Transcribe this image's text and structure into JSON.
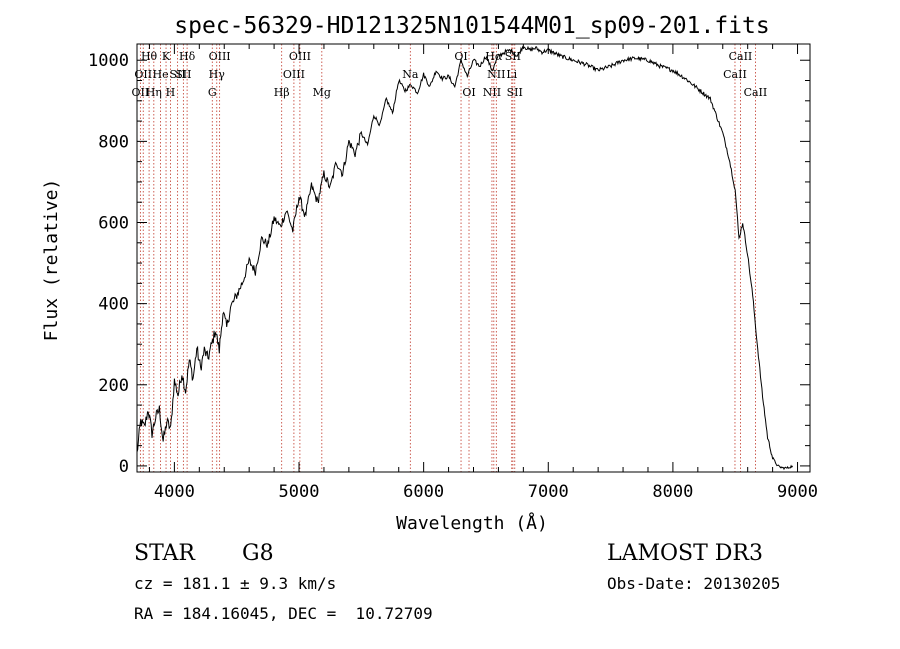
{
  "chart_data": {
    "type": "line",
    "title": "spec-56329-HD121325N101544M01_sp09-201.fits",
    "xlabel": "Wavelength (Å)",
    "ylabel": "Flux (relative)",
    "xlim": [
      3700,
      9100
    ],
    "ylim": [
      -15,
      1040
    ],
    "x_ticks": [
      4000,
      5000,
      6000,
      7000,
      8000,
      9000
    ],
    "x_tick_labels": [
      "4000",
      "5000",
      "6000",
      "7000",
      "8000",
      "9000"
    ],
    "y_ticks": [
      0,
      200,
      400,
      600,
      800,
      1000
    ],
    "y_tick_labels": [
      "0",
      "200",
      "400",
      "600",
      "800",
      "1000"
    ],
    "series": [
      {
        "name": "spectrum",
        "x": [
          3700,
          3730,
          3760,
          3790,
          3820,
          3850,
          3880,
          3910,
          3940,
          3970,
          4000,
          4030,
          4060,
          4090,
          4120,
          4150,
          4180,
          4210,
          4240,
          4270,
          4300,
          4330,
          4360,
          4390,
          4420,
          4450,
          4500,
          4550,
          4600,
          4650,
          4700,
          4750,
          4800,
          4850,
          4900,
          4950,
          5000,
          5050,
          5100,
          5150,
          5200,
          5250,
          5300,
          5350,
          5400,
          5450,
          5500,
          5550,
          5600,
          5650,
          5700,
          5750,
          5800,
          5850,
          5900,
          5950,
          6000,
          6050,
          6100,
          6150,
          6200,
          6250,
          6300,
          6350,
          6400,
          6450,
          6500,
          6550,
          6600,
          6650,
          6700,
          6750,
          6800,
          6850,
          6900,
          6950,
          7000,
          7100,
          7200,
          7300,
          7400,
          7500,
          7600,
          7700,
          7800,
          7900,
          8000,
          8100,
          8200,
          8300,
          8400,
          8450,
          8500,
          8530,
          8560,
          8600,
          8640,
          8680,
          8720,
          8760,
          8800,
          8840,
          8880,
          8920,
          8960
        ],
        "y": [
          30,
          110,
          95,
          140,
          80,
          120,
          140,
          60,
          110,
          90,
          210,
          175,
          230,
          185,
          260,
          215,
          290,
          240,
          285,
          265,
          300,
          335,
          285,
          380,
          340,
          390,
          420,
          455,
          505,
          480,
          560,
          545,
          610,
          590,
          630,
          580,
          665,
          615,
          690,
          650,
          720,
          685,
          750,
          720,
          800,
          770,
          820,
          790,
          865,
          840,
          905,
          870,
          950,
          925,
          940,
          920,
          965,
          935,
          975,
          955,
          960,
          935,
          1000,
          960,
          1000,
          985,
          1010,
          975,
          1010,
          1020,
          1025,
          1010,
          1035,
          1025,
          1030,
          1020,
          1025,
          1010,
          1000,
          990,
          975,
          985,
          1000,
          1005,
          1000,
          985,
          975,
          955,
          930,
          905,
          820,
          760,
          680,
          560,
          600,
          520,
          420,
          290,
          170,
          70,
          20,
          0,
          -5,
          -5,
          0
        ]
      }
    ],
    "lines": [
      {
        "wl": 3727,
        "label": "OII",
        "row": 3
      },
      {
        "wl": 3750,
        "label": "OII",
        "row": 2
      },
      {
        "wl": 3797,
        "label": "Hθ",
        "row": 1
      },
      {
        "wl": 3835,
        "label": "Hη",
        "row": 3
      },
      {
        "wl": 3889,
        "label": "He",
        "row": 2
      },
      {
        "wl": 3933,
        "label": "K",
        "row": 1
      },
      {
        "wl": 3968,
        "label": "H",
        "row": 3
      },
      {
        "wl": 4026,
        "label": "SII",
        "row": 2
      },
      {
        "wl": 4072,
        "label": "SII",
        "row": 2
      },
      {
        "wl": 4102,
        "label": "Hδ",
        "row": 1
      },
      {
        "wl": 4304,
        "label": "G",
        "row": 3
      },
      {
        "wl": 4340,
        "label": "Hγ",
        "row": 2
      },
      {
        "wl": 4363,
        "label": "OIII",
        "row": 1
      },
      {
        "wl": 4861,
        "label": "Hβ",
        "row": 3
      },
      {
        "wl": 4959,
        "label": "OIII",
        "row": 2
      },
      {
        "wl": 5007,
        "label": "OIII",
        "row": 1
      },
      {
        "wl": 5183,
        "label": "Mg",
        "row": 3
      },
      {
        "wl": 5893,
        "label": "Na",
        "row": 2
      },
      {
        "wl": 6300,
        "label": "OI",
        "row": 1
      },
      {
        "wl": 6364,
        "label": "OI",
        "row": 3
      },
      {
        "wl": 6548,
        "label": "NII",
        "row": 3
      },
      {
        "wl": 6563,
        "label": "Hα",
        "row": 1
      },
      {
        "wl": 6583,
        "label": "NII",
        "row": 2
      },
      {
        "wl": 6707,
        "label": "Li",
        "row": 2
      },
      {
        "wl": 6716,
        "label": "SII",
        "row": 1
      },
      {
        "wl": 6731,
        "label": "SII",
        "row": 3
      },
      {
        "wl": 8498,
        "label": "CaII",
        "row": 2
      },
      {
        "wl": 8542,
        "label": "CaII",
        "row": 1
      },
      {
        "wl": 8662,
        "label": "CaII",
        "row": 3
      }
    ]
  },
  "info": {
    "object_type": "STAR",
    "subclass": "G8",
    "survey": "LAMOST DR3",
    "cz": "cz = 181.1 ± 9.3 km/s",
    "obs_date": "Obs-Date: 20130205",
    "coords": "RA = 184.16045, DEC =  10.72709"
  }
}
